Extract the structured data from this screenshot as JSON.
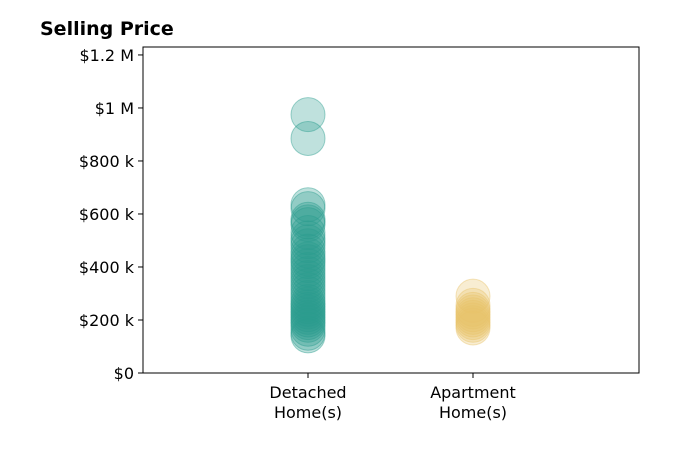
{
  "chart_data": {
    "type": "scatter",
    "title": "Selling Price",
    "xlabel": "",
    "ylabel": "",
    "ylim": [
      0,
      1230000
    ],
    "y_ticks": [
      {
        "value": 0,
        "label": "$0"
      },
      {
        "value": 200000,
        "label": "$200 k"
      },
      {
        "value": 400000,
        "label": "$400 k"
      },
      {
        "value": 600000,
        "label": "$600 k"
      },
      {
        "value": 800000,
        "label": "$800 k"
      },
      {
        "value": 1000000,
        "label": "$1 M"
      },
      {
        "value": 1200000,
        "label": "$1.2 M"
      }
    ],
    "categories": [
      {
        "lines": [
          "Detached",
          "Home(s)"
        ]
      },
      {
        "lines": [
          "Apartment",
          "Home(s)"
        ]
      }
    ],
    "grid": false,
    "series": [
      {
        "category_index": 0,
        "color": "#2a9d8f",
        "values": [
          975000,
          885000,
          635000,
          620000,
          580000,
          570000,
          560000,
          530000,
          510000,
          495000,
          480000,
          460000,
          445000,
          430000,
          420000,
          405000,
          390000,
          375000,
          360000,
          345000,
          330000,
          315000,
          300000,
          285000,
          270000,
          260000,
          250000,
          240000,
          230000,
          220000,
          210000,
          200000,
          190000,
          180000,
          165000,
          150000,
          140000
        ]
      },
      {
        "category_index": 1,
        "color": "#e9c46a",
        "values": [
          290000,
          255000,
          240000,
          230000,
          220000,
          210000,
          200000,
          190000,
          180000,
          170000
        ]
      }
    ]
  }
}
